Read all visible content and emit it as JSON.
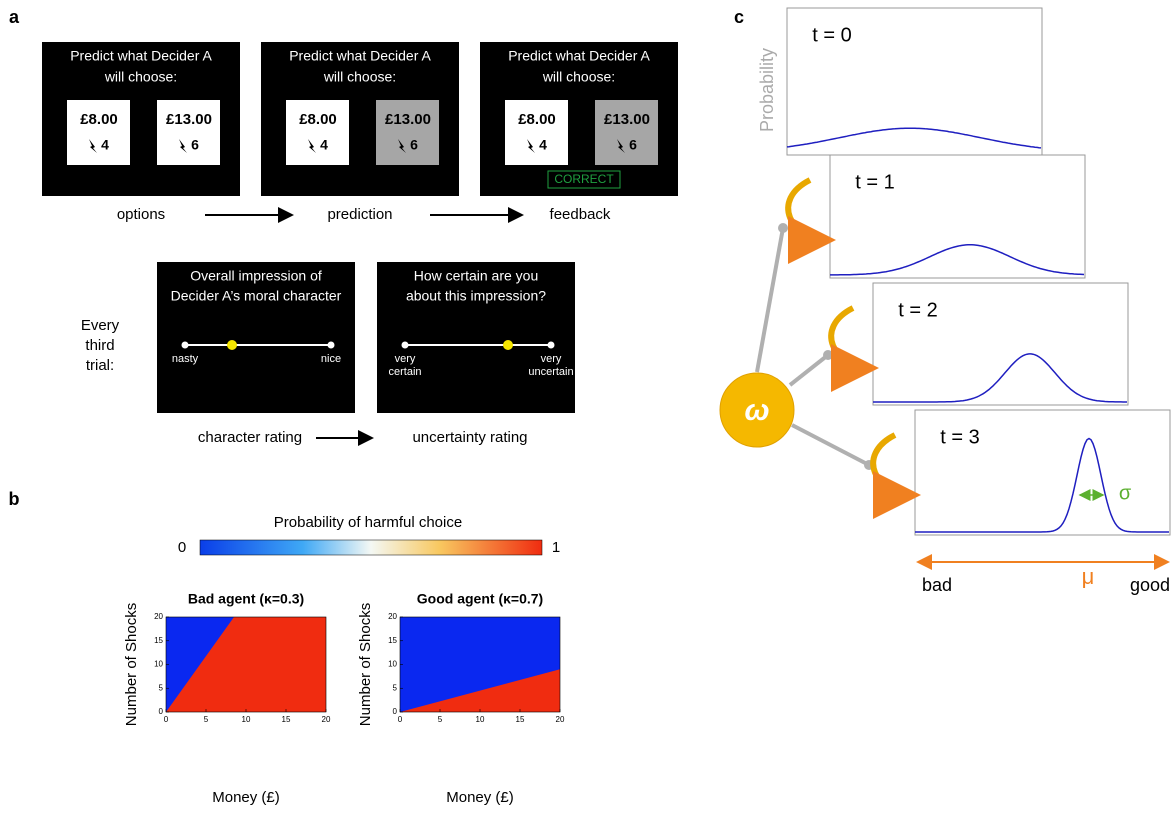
{
  "panel_a": {
    "label": "a",
    "screens": [
      {
        "prompt": [
          "Predict what Decider A",
          "will choose:"
        ],
        "options": [
          {
            "money": "£8.00",
            "shocks": "4"
          },
          {
            "money": "£13.00",
            "shocks": "6"
          }
        ]
      },
      {
        "prompt": [
          "Predict what Decider A",
          "will choose:"
        ],
        "options": [
          {
            "money": "£8.00",
            "shocks": "4"
          },
          {
            "money": "£13.00",
            "shocks": "6"
          }
        ]
      },
      {
        "prompt": [
          "Predict what Decider A",
          "will choose:"
        ],
        "options": [
          {
            "money": "£8.00",
            "shocks": "4"
          },
          {
            "money": "£13.00",
            "shocks": "6"
          }
        ],
        "feedback": "CORRECT"
      }
    ],
    "stages": [
      "options",
      "prediction",
      "feedback"
    ],
    "every_third": [
      "Every",
      "third",
      "trial:"
    ],
    "ratings": [
      {
        "question": [
          "Overall impression of",
          "Decider A’s moral character"
        ],
        "left": [
          "nasty"
        ],
        "right": [
          "nice"
        ]
      },
      {
        "question": [
          "How certain are you",
          "about this impression?"
        ],
        "left": [
          "very",
          "certain"
        ],
        "right": [
          "very",
          "uncertain"
        ]
      }
    ],
    "rating_stages": [
      "character rating",
      "uncertainty rating"
    ]
  },
  "panel_b": {
    "label": "b",
    "colorbar_title": "Probability of harmful choice",
    "colorbar_min": 0,
    "colorbar_max": 1,
    "plots": [
      {
        "title": "Bad agent (κ=0.3)",
        "xlabel": "Money (£)",
        "ylabel": "Number of Shocks",
        "xlim": [
          0,
          20
        ],
        "ylim": [
          0,
          20
        ],
        "xticks": [
          0,
          5,
          10,
          15,
          20
        ],
        "yticks": [
          0,
          5,
          10,
          15,
          20
        ],
        "boundary_end": {
          "x": 8.5,
          "y": 20
        }
      },
      {
        "title": "Good agent (κ=0.7)",
        "xlabel": "Money (£)",
        "ylabel": "Number of Shocks",
        "xlim": [
          0,
          20
        ],
        "ylim": [
          0,
          20
        ],
        "xticks": [
          0,
          5,
          10,
          15,
          20
        ],
        "yticks": [
          0,
          5,
          10,
          15,
          20
        ],
        "boundary_end": {
          "x": 20,
          "y": 9
        }
      }
    ]
  },
  "panel_c": {
    "label": "c",
    "ylabel": "Probability",
    "steps": [
      "t = 0",
      "t = 1",
      "t = 2",
      "t = 3"
    ],
    "node": "ω",
    "sigma": "σ",
    "mu": "μ",
    "left": "bad",
    "right": "good"
  }
}
